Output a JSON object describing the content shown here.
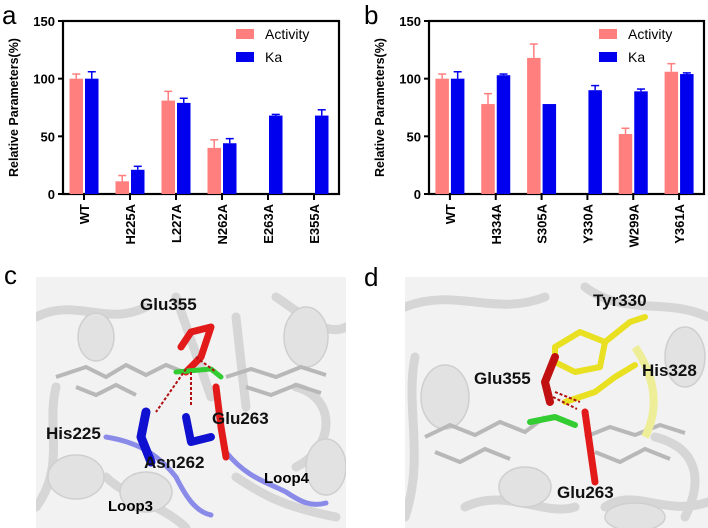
{
  "panels": {
    "a": {
      "letter": "a"
    },
    "b": {
      "letter": "b"
    },
    "c": {
      "letter": "c",
      "labels": [
        "Glu355",
        "His225",
        "Asn262",
        "Glu263"
      ],
      "loops": [
        "Loop3",
        "Loop4"
      ],
      "loop_color": "#4a4af0"
    },
    "d": {
      "letter": "d",
      "labels": [
        "Tyr330",
        "His328",
        "Glu355",
        "Glu263"
      ]
    }
  },
  "colors": {
    "activity": "#ff7f7f",
    "ka": "#0000ee",
    "axis": "#000000"
  },
  "chart_data": [
    {
      "type": "bar",
      "panel": "a",
      "title": "",
      "xlabel": "",
      "ylabel": "Relative Parameters(%)",
      "ylim": [
        0,
        150
      ],
      "yticks": [
        0,
        50,
        100,
        150
      ],
      "grid": false,
      "legend_position": "upper right",
      "categories": [
        "WT",
        "H225A",
        "L227A",
        "N262A",
        "E263A",
        "E355A"
      ],
      "series": [
        {
          "name": "Activity",
          "values": [
            100,
            11,
            81,
            40,
            0,
            0
          ],
          "error_top": [
            104,
            16,
            89,
            47,
            0,
            0
          ]
        },
        {
          "name": "Ka",
          "values": [
            100,
            21,
            79,
            44,
            68,
            68
          ],
          "error_top": [
            106,
            24,
            83,
            48,
            69,
            73
          ]
        }
      ]
    },
    {
      "type": "bar",
      "panel": "b",
      "title": "",
      "xlabel": "",
      "ylabel": "Relative Parameters(%)",
      "ylim": [
        0,
        150
      ],
      "yticks": [
        0,
        50,
        100,
        150
      ],
      "grid": false,
      "legend_position": "upper right",
      "categories": [
        "WT",
        "H334A",
        "S305A",
        "Y330A",
        "W299A",
        "Y361A"
      ],
      "series": [
        {
          "name": "Activity",
          "values": [
            100,
            78,
            118,
            0,
            52,
            106
          ],
          "error_top": [
            104,
            87,
            130,
            0,
            57,
            113
          ]
        },
        {
          "name": "Ka",
          "values": [
            100,
            103,
            78,
            90,
            89,
            104
          ],
          "error_top": [
            106,
            104,
            78,
            94,
            91,
            105
          ]
        }
      ]
    }
  ]
}
